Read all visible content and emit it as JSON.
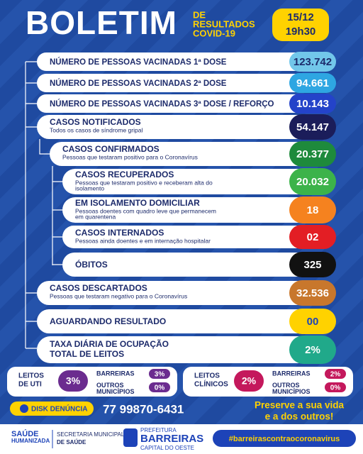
{
  "header": {
    "title": "BOLETIM",
    "subtitle": [
      "DE",
      "RESULTADOS",
      "COVID-19"
    ],
    "date": "15/12",
    "time": "19h30"
  },
  "rows": [
    {
      "label": "NÚMERO DE PESSOAS VACINADAS 1ª DOSE",
      "sub": [],
      "value": "123.742",
      "color": "#72c7ea",
      "value_color": "#1d2b6b"
    },
    {
      "label": "NÚMERO DE PESSOAS VACINADAS 2ª DOSE",
      "sub": [],
      "value": "94.661",
      "color": "#2ea6e2",
      "value_color": "#ffffff"
    },
    {
      "label": "NÚMERO DE PESSOAS VACINADAS 3ª DOSE / REFORÇO",
      "sub": [],
      "value": "10.143",
      "color": "#2443c9",
      "value_color": "#ffffff"
    },
    {
      "label": "CASOS NOTIFICADOS",
      "sub": [
        "Todos os casos de síndrome gripal"
      ],
      "value": "54.147",
      "color": "#1b1d5a",
      "value_color": "#ffffff"
    },
    {
      "label": "CASOS CONFIRMADOS",
      "sub": [
        "Pessoas que testaram positivo para o Coronavírus"
      ],
      "value": "20.377",
      "color": "#1e8a3c",
      "value_color": "#ffffff"
    },
    {
      "label": "CASOS RECUPERADOS",
      "sub": [
        "Pessoas que testaram positivo e receberam alta do",
        "isolamento"
      ],
      "value": "20.032",
      "color": "#3cb34a",
      "value_color": "#ffffff"
    },
    {
      "label": "EM ISOLAMENTO DOMICILIAR",
      "sub": [
        "Pessoas doentes com quadro leve que permanecem",
        "em quarentena"
      ],
      "value": "18",
      "color": "#f5821f",
      "value_color": "#ffffff"
    },
    {
      "label": "CASOS INTERNADOS",
      "sub": [
        "Pessoas ainda doentes e em internação hospitalar"
      ],
      "value": "02",
      "color": "#e31e24",
      "value_color": "#ffffff"
    },
    {
      "label": "ÓBITOS",
      "sub": [],
      "value": "325",
      "color": "#111111",
      "value_color": "#ffffff"
    },
    {
      "label": "CASOS DESCARTADOS",
      "sub": [
        "Pessoas que testaram negativo para o Coronavírus"
      ],
      "value": "32.536",
      "color": "#c8772c",
      "value_color": "#ffffff"
    },
    {
      "label": "AGUARDANDO RESULTADO",
      "sub": [],
      "value": "00",
      "color": "#ffd200",
      "value_color": "#1d43b8"
    },
    {
      "label": "TAXA DIÁRIA DE OCUPAÇÃO",
      "sub": [
        "TOTAL DE LEITOS"
      ],
      "value": "2%",
      "color": "#20a98a",
      "value_color": "#ffffff"
    }
  ],
  "beds": [
    {
      "label": [
        "LEITOS",
        "DE UTI"
      ],
      "value": "3%",
      "color": "#6b2c8f",
      "breakdown": [
        {
          "name": [
            "BARREIRAS"
          ],
          "value": "3%"
        },
        {
          "name": [
            "OUTROS",
            "MUNICÍPIOS"
          ],
          "value": "0%"
        }
      ]
    },
    {
      "label": [
        "LEITOS",
        "CLÍNICOS"
      ],
      "value": "2%",
      "color": "#c4185c",
      "breakdown": [
        {
          "name": [
            "BARREIRAS"
          ],
          "value": "2%"
        },
        {
          "name": [
            "OUTROS",
            "MUNICÍPIOS"
          ],
          "value": "0%"
        }
      ]
    }
  ],
  "footer": {
    "disk": "DISK DENÚNCIA",
    "phone": "77 99870-6431",
    "slogan": [
      "Preserve a sua vida",
      "e a dos outros!"
    ],
    "logo_saude": [
      "SAÚDE",
      "HUMANIZADA"
    ],
    "secretaria": [
      "SECRETARIA MUNICIPAL",
      "DE SAÚDE"
    ],
    "prefeitura": [
      "PREFEITURA",
      "BARREIRAS",
      "CAPITAL DO OESTE"
    ],
    "hashtag": "#barreirascontraocoronavirus"
  }
}
